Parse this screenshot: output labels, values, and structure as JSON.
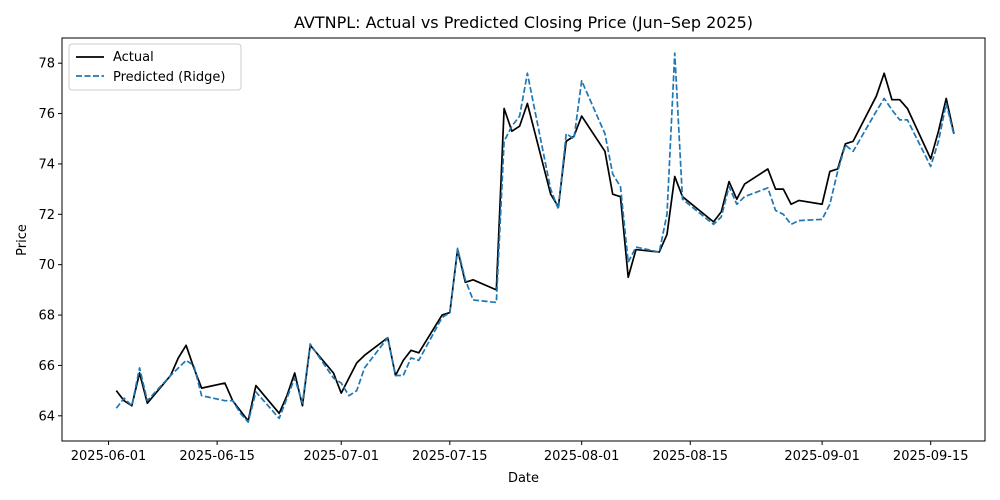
{
  "chart_data": {
    "type": "line",
    "title": "AVTNPL: Actual vs Predicted Closing Price (Jun–Sep 2025)",
    "xlabel": "Date",
    "ylabel": "Price",
    "xlim": [
      "2025-05-26",
      "2025-09-22"
    ],
    "ylim": [
      63.0,
      79.0
    ],
    "x_ticks": [
      "2025-06-01",
      "2025-06-15",
      "2025-07-01",
      "2025-07-15",
      "2025-08-01",
      "2025-08-15",
      "2025-09-01",
      "2025-09-15"
    ],
    "y_ticks": [
      64,
      66,
      68,
      70,
      72,
      74,
      76,
      78
    ],
    "grid": false,
    "legend_position": "top-left",
    "x": [
      "2025-06-02",
      "2025-06-03",
      "2025-06-04",
      "2025-06-05",
      "2025-06-06",
      "2025-06-09",
      "2025-06-10",
      "2025-06-11",
      "2025-06-12",
      "2025-06-13",
      "2025-06-16",
      "2025-06-17",
      "2025-06-18",
      "2025-06-19",
      "2025-06-20",
      "2025-06-23",
      "2025-06-24",
      "2025-06-25",
      "2025-06-26",
      "2025-06-27",
      "2025-06-30",
      "2025-07-01",
      "2025-07-02",
      "2025-07-03",
      "2025-07-04",
      "2025-07-07",
      "2025-07-08",
      "2025-07-09",
      "2025-07-10",
      "2025-07-11",
      "2025-07-14",
      "2025-07-15",
      "2025-07-16",
      "2025-07-17",
      "2025-07-18",
      "2025-07-21",
      "2025-07-22",
      "2025-07-23",
      "2025-07-24",
      "2025-07-25",
      "2025-07-28",
      "2025-07-29",
      "2025-07-30",
      "2025-07-31",
      "2025-08-01",
      "2025-08-04",
      "2025-08-05",
      "2025-08-06",
      "2025-08-07",
      "2025-08-08",
      "2025-08-11",
      "2025-08-12",
      "2025-08-13",
      "2025-08-14",
      "2025-08-18",
      "2025-08-19",
      "2025-08-20",
      "2025-08-21",
      "2025-08-22",
      "2025-08-25",
      "2025-08-26",
      "2025-08-27",
      "2025-08-28",
      "2025-08-29",
      "2025-09-01",
      "2025-09-02",
      "2025-09-03",
      "2025-09-04",
      "2025-09-05",
      "2025-09-08",
      "2025-09-09",
      "2025-09-10",
      "2025-09-11",
      "2025-09-12",
      "2025-09-15",
      "2025-09-16",
      "2025-09-17",
      "2025-09-18"
    ],
    "series": [
      {
        "name": "Actual",
        "color": "#000000",
        "style": "solid",
        "values": [
          65.0,
          64.6,
          64.4,
          65.7,
          64.5,
          65.6,
          66.3,
          66.8,
          65.9,
          65.1,
          65.3,
          64.6,
          64.2,
          63.8,
          65.2,
          64.1,
          64.8,
          65.7,
          64.4,
          66.8,
          65.7,
          64.9,
          65.5,
          66.1,
          66.4,
          67.1,
          65.6,
          66.2,
          66.6,
          66.5,
          68.0,
          68.1,
          70.6,
          69.3,
          69.4,
          69.0,
          76.2,
          75.3,
          75.5,
          76.4,
          72.8,
          72.3,
          74.9,
          75.1,
          75.9,
          74.5,
          72.8,
          72.7,
          69.5,
          70.6,
          70.5,
          71.2,
          73.5,
          72.7,
          71.7,
          72.1,
          73.3,
          72.6,
          73.2,
          73.8,
          73.0,
          73.0,
          72.4,
          72.55,
          72.4,
          73.7,
          73.8,
          74.8,
          74.9,
          76.7,
          77.6,
          76.55,
          76.55,
          76.2,
          74.2,
          75.3,
          76.6,
          75.2
        ]
      },
      {
        "name": "Predicted (Ridge)",
        "color": "#1f77b4",
        "style": "dashed",
        "values": [
          64.3,
          64.7,
          64.4,
          65.9,
          64.6,
          65.6,
          65.9,
          66.2,
          66.0,
          64.8,
          64.6,
          64.6,
          64.1,
          63.75,
          64.95,
          63.9,
          64.7,
          65.5,
          64.5,
          66.85,
          65.5,
          65.3,
          64.8,
          65.0,
          65.9,
          67.1,
          65.6,
          65.6,
          66.3,
          66.2,
          67.9,
          68.1,
          70.65,
          69.4,
          68.6,
          68.5,
          74.9,
          75.5,
          75.9,
          77.6,
          73.0,
          72.2,
          75.2,
          75.0,
          77.3,
          75.2,
          73.6,
          73.1,
          70.1,
          70.7,
          70.5,
          72.0,
          78.4,
          72.6,
          71.6,
          71.9,
          73.1,
          72.4,
          72.7,
          73.05,
          72.15,
          72.0,
          71.6,
          71.75,
          71.8,
          72.4,
          73.7,
          74.75,
          74.5,
          76.1,
          76.6,
          76.15,
          75.75,
          75.75,
          73.9,
          74.9,
          76.4,
          75.15
        ]
      }
    ]
  }
}
